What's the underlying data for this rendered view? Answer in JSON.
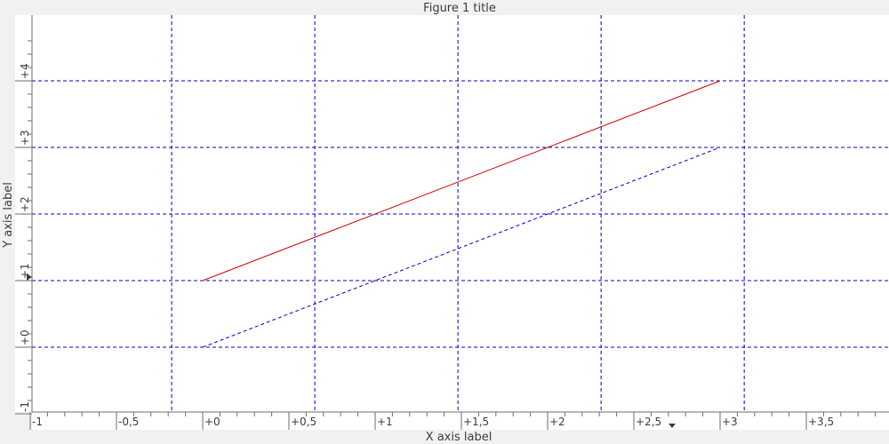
{
  "window": {
    "title": "Figure 1 title"
  },
  "chart_data": {
    "type": "line",
    "title": "Figure 1 title",
    "xlabel": "X axis label",
    "ylabel": "Y axis label",
    "xlim": [
      -1.0,
      4.0
    ],
    "ylim": [
      -1.0,
      4.8
    ],
    "x_ticks": [
      -1,
      -0.5,
      0,
      0.5,
      1,
      1.5,
      2,
      2.5,
      3,
      3.5
    ],
    "x_tick_labels": [
      "-1",
      "-0,5",
      "+0",
      "+0,5",
      "+1",
      "+1,5",
      "+2",
      "+2,5",
      "+3",
      "+3,5"
    ],
    "y_ticks": [
      -1,
      0,
      1,
      2,
      3,
      4
    ],
    "y_tick_labels": [
      "-1",
      "+0",
      "+1",
      "+2",
      "+3",
      "+4"
    ],
    "grid": {
      "x": [
        -0.18,
        0.65,
        1.48,
        2.31,
        3.14
      ],
      "y": [
        0,
        1,
        2,
        3,
        4
      ],
      "style": "dashed",
      "color": "#0000cc"
    },
    "series": [
      {
        "x": [
          0,
          3
        ],
        "values": [
          1,
          4
        ],
        "color": "#cc0000",
        "style": "solid"
      },
      {
        "x": [
          0,
          3
        ],
        "values": [
          0,
          3
        ],
        "color": "#0000cc",
        "style": "dashed"
      }
    ]
  }
}
